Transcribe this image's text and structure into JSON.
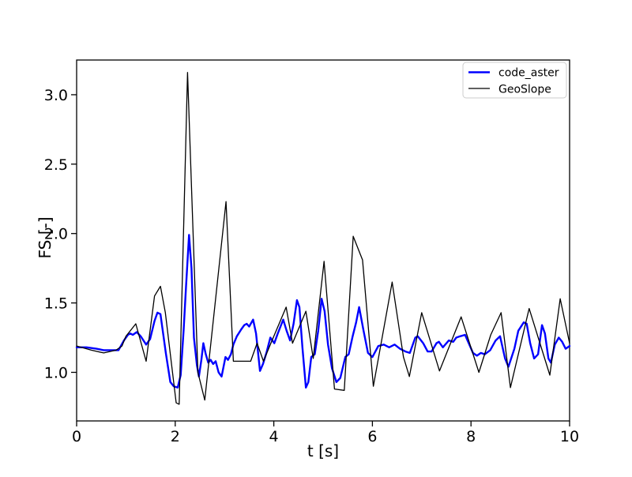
{
  "figure": {
    "background": "#ffffff",
    "spine_color": "#000000",
    "legend_border_color": "#cccccc"
  },
  "chart_data": {
    "type": "line",
    "title": "",
    "xlabel": "t [s]",
    "ylabel": "FS [-]",
    "xlim": [
      0,
      10
    ],
    "ylim": [
      0.65,
      3.25
    ],
    "grid": false,
    "legend_position": "upper right",
    "x_ticks": [
      0,
      2,
      4,
      6,
      8,
      10
    ],
    "x_tick_labels": [
      "0",
      "2",
      "4",
      "6",
      "8",
      "10"
    ],
    "y_ticks": [
      1.0,
      1.5,
      2.0,
      2.5,
      3.0
    ],
    "y_tick_labels": [
      "1.0",
      "1.5",
      "2.0",
      "2.5",
      "3.0"
    ],
    "series": [
      {
        "name": "code_aster",
        "color": "#0000ff",
        "line_width": 2.4,
        "points": [
          [
            0,
            1.18
          ],
          [
            0.2,
            1.18
          ],
          [
            0.4,
            1.17
          ],
          [
            0.55,
            1.16
          ],
          [
            0.7,
            1.16
          ],
          [
            0.85,
            1.16
          ],
          [
            0.96,
            1.23
          ],
          [
            1.04,
            1.27
          ],
          [
            1.09,
            1.28
          ],
          [
            1.14,
            1.27
          ],
          [
            1.22,
            1.29
          ],
          [
            1.3,
            1.26
          ],
          [
            1.41,
            1.2
          ],
          [
            1.49,
            1.24
          ],
          [
            1.58,
            1.37
          ],
          [
            1.64,
            1.43
          ],
          [
            1.7,
            1.42
          ],
          [
            1.81,
            1.14
          ],
          [
            1.9,
            0.93
          ],
          [
            1.97,
            0.9
          ],
          [
            2.05,
            0.89
          ],
          [
            2.11,
            0.98
          ],
          [
            2.17,
            1.3
          ],
          [
            2.22,
            1.62
          ],
          [
            2.28,
            1.99
          ],
          [
            2.33,
            1.75
          ],
          [
            2.38,
            1.25
          ],
          [
            2.44,
            1.05
          ],
          [
            2.48,
            0.97
          ],
          [
            2.53,
            1.09
          ],
          [
            2.57,
            1.21
          ],
          [
            2.62,
            1.13
          ],
          [
            2.67,
            1.07
          ],
          [
            2.72,
            1.09
          ],
          [
            2.77,
            1.06
          ],
          [
            2.82,
            1.08
          ],
          [
            2.88,
            1.0
          ],
          [
            2.94,
            0.97
          ],
          [
            3.02,
            1.11
          ],
          [
            3.07,
            1.09
          ],
          [
            3.13,
            1.13
          ],
          [
            3.18,
            1.2
          ],
          [
            3.25,
            1.26
          ],
          [
            3.34,
            1.31
          ],
          [
            3.4,
            1.34
          ],
          [
            3.45,
            1.35
          ],
          [
            3.5,
            1.33
          ],
          [
            3.58,
            1.38
          ],
          [
            3.64,
            1.28
          ],
          [
            3.72,
            1.01
          ],
          [
            3.78,
            1.06
          ],
          [
            3.85,
            1.14
          ],
          [
            3.93,
            1.25
          ],
          [
            4.01,
            1.21
          ],
          [
            4.08,
            1.28
          ],
          [
            4.19,
            1.38
          ],
          [
            4.26,
            1.3
          ],
          [
            4.33,
            1.23
          ],
          [
            4.4,
            1.35
          ],
          [
            4.47,
            1.52
          ],
          [
            4.52,
            1.47
          ],
          [
            4.58,
            1.18
          ],
          [
            4.65,
            0.89
          ],
          [
            4.7,
            0.93
          ],
          [
            4.76,
            1.11
          ],
          [
            4.83,
            1.13
          ],
          [
            4.9,
            1.3
          ],
          [
            4.97,
            1.53
          ],
          [
            5.03,
            1.44
          ],
          [
            5.1,
            1.2
          ],
          [
            5.18,
            1.03
          ],
          [
            5.27,
            0.93
          ],
          [
            5.35,
            0.96
          ],
          [
            5.45,
            1.11
          ],
          [
            5.52,
            1.13
          ],
          [
            5.6,
            1.26
          ],
          [
            5.67,
            1.36
          ],
          [
            5.73,
            1.47
          ],
          [
            5.82,
            1.3
          ],
          [
            5.91,
            1.14
          ],
          [
            6.0,
            1.11
          ],
          [
            6.12,
            1.19
          ],
          [
            6.23,
            1.2
          ],
          [
            6.34,
            1.18
          ],
          [
            6.45,
            1.2
          ],
          [
            6.56,
            1.17
          ],
          [
            6.67,
            1.15
          ],
          [
            6.76,
            1.14
          ],
          [
            6.87,
            1.25
          ],
          [
            6.92,
            1.26
          ],
          [
            7.03,
            1.21
          ],
          [
            7.12,
            1.15
          ],
          [
            7.2,
            1.15
          ],
          [
            7.3,
            1.21
          ],
          [
            7.35,
            1.22
          ],
          [
            7.43,
            1.18
          ],
          [
            7.55,
            1.23
          ],
          [
            7.64,
            1.22
          ],
          [
            7.7,
            1.25
          ],
          [
            7.78,
            1.26
          ],
          [
            7.88,
            1.27
          ],
          [
            7.99,
            1.18
          ],
          [
            8.04,
            1.14
          ],
          [
            8.12,
            1.12
          ],
          [
            8.2,
            1.14
          ],
          [
            8.28,
            1.13
          ],
          [
            8.39,
            1.16
          ],
          [
            8.5,
            1.23
          ],
          [
            8.59,
            1.26
          ],
          [
            8.69,
            1.1
          ],
          [
            8.76,
            1.04
          ],
          [
            8.88,
            1.17
          ],
          [
            8.96,
            1.3
          ],
          [
            9.07,
            1.36
          ],
          [
            9.13,
            1.35
          ],
          [
            9.2,
            1.21
          ],
          [
            9.28,
            1.1
          ],
          [
            9.36,
            1.13
          ],
          [
            9.44,
            1.34
          ],
          [
            9.5,
            1.28
          ],
          [
            9.57,
            1.1
          ],
          [
            9.62,
            1.07
          ],
          [
            9.7,
            1.2
          ],
          [
            9.78,
            1.25
          ],
          [
            9.85,
            1.22
          ],
          [
            9.92,
            1.17
          ],
          [
            10,
            1.19
          ]
        ]
      },
      {
        "name": "GeoSlope",
        "color": "#000000",
        "line_width": 1.3,
        "points": [
          [
            0,
            1.19
          ],
          [
            0.3,
            1.16
          ],
          [
            0.55,
            1.14
          ],
          [
            0.8,
            1.16
          ],
          [
            0.92,
            1.19
          ],
          [
            1.0,
            1.26
          ],
          [
            1.2,
            1.35
          ],
          [
            1.41,
            1.08
          ],
          [
            1.58,
            1.55
          ],
          [
            1.7,
            1.62
          ],
          [
            1.8,
            1.43
          ],
          [
            2.02,
            0.78
          ],
          [
            2.08,
            0.77
          ],
          [
            2.25,
            3.16
          ],
          [
            2.46,
            1.0
          ],
          [
            2.6,
            0.8
          ],
          [
            3.03,
            2.23
          ],
          [
            3.18,
            1.08
          ],
          [
            3.53,
            1.08
          ],
          [
            3.66,
            1.21
          ],
          [
            3.79,
            1.08
          ],
          [
            3.93,
            1.2
          ],
          [
            4.25,
            1.47
          ],
          [
            4.38,
            1.21
          ],
          [
            4.65,
            1.44
          ],
          [
            4.8,
            1.1
          ],
          [
            5.02,
            1.8
          ],
          [
            5.23,
            0.88
          ],
          [
            5.43,
            0.87
          ],
          [
            5.61,
            1.98
          ],
          [
            5.8,
            1.81
          ],
          [
            6.02,
            0.9
          ],
          [
            6.4,
            1.65
          ],
          [
            6.55,
            1.3
          ],
          [
            6.63,
            1.11
          ],
          [
            6.75,
            0.97
          ],
          [
            7.0,
            1.43
          ],
          [
            7.36,
            1.01
          ],
          [
            7.8,
            1.4
          ],
          [
            8.16,
            1.0
          ],
          [
            8.4,
            1.27
          ],
          [
            8.61,
            1.43
          ],
          [
            8.8,
            0.89
          ],
          [
            9.18,
            1.46
          ],
          [
            9.6,
            0.98
          ],
          [
            9.81,
            1.53
          ],
          [
            10,
            1.21
          ]
        ]
      }
    ]
  }
}
